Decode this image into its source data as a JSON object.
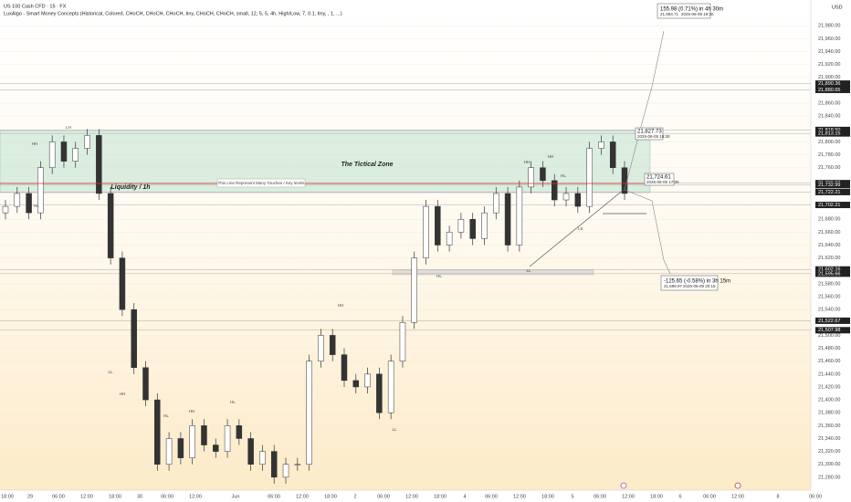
{
  "header": {
    "symbol": "US 100 Cash CFD · 15 · FX",
    "indicator": "LuxAlgo - Smart Money Concepts (Historical, Colored, CHoCH, CHoCH, CHoCH, tiny, CHoCH, CHoCH, small, 12, 5, 5, 4h, High/Low, 7, 0.1, tiny, , 1, ...)"
  },
  "currency": "USD",
  "annotations": {
    "zone": "The Tictical Zone",
    "liquidity": "Liquidity / 1h",
    "key_line": "This Line Represent Many Touches  / Key levels",
    "trend": "LS"
  },
  "measures": [
    {
      "change": "155.98 (0.71%) in 4h 30m",
      "price": "21,983.71",
      "date": "2025-06-09  19:30"
    },
    {
      "price": "21,827.73",
      "date": "2025-06-05 15:30"
    },
    {
      "price": "21,724.61",
      "date": "2025-06-05 17:00"
    },
    {
      "change": "-125.65 (-0.58%) in 3h 15m",
      "price": "21,598.97",
      "date": "2025-06-09  20:15"
    }
  ],
  "smc_labels": [
    "HH",
    "HL",
    "LH",
    "LL",
    "HH",
    "HL",
    "HH",
    "HL",
    "LL",
    "HH",
    "HL",
    "LL",
    "HH",
    "HH",
    "HL"
  ],
  "levels": [
    {
      "value": 21890.36,
      "label": "21,890.36"
    },
    {
      "value": 21880.65,
      "label": "21,880.65"
    },
    {
      "value": 21818.5,
      "label": "21,818.50"
    },
    {
      "value": 21813.15,
      "label": "21,813.15"
    },
    {
      "value": 21736.03,
      "label": "21,736.03"
    },
    {
      "value": 21732.99,
      "label": "21,732.99"
    },
    {
      "value": 21722.21,
      "label": "21,722.21"
    },
    {
      "value": 21702.21,
      "label": "21,702.21"
    },
    {
      "value": 21602.16,
      "label": "21,602.16"
    },
    {
      "value": 21595.66,
      "label": "21,595.66"
    },
    {
      "value": 21522.67,
      "label": "21,522.67"
    },
    {
      "value": 21507.98,
      "label": "21,507.98"
    }
  ],
  "chart_data": {
    "type": "candlestick",
    "up_color": "#ffffff",
    "down_color": "#333333",
    "wick_color": "#333333",
    "time_labels": [
      "18:00",
      "29",
      "06:00",
      "12:00",
      "18:00",
      "30",
      "06:00",
      "12:00",
      "Jun",
      "06:00",
      "12:00",
      "18:00",
      "2",
      "06:00",
      "12:00",
      "18:00",
      "4",
      "06:00",
      "12:00",
      "18:00",
      "5",
      "06:00",
      "12:00",
      "18:00",
      "6",
      "06:00",
      "12:00",
      "8",
      "06:00"
    ],
    "open": [
      21690,
      21700,
      21720,
      21690,
      21760,
      21800,
      21770,
      21790,
      21810,
      21720,
      21620,
      21540,
      21450,
      21400,
      21300,
      21340,
      21310,
      21360,
      21330,
      21320,
      21360,
      21340,
      21300,
      21320,
      21280,
      21300,
      21300,
      21460,
      21500,
      21470,
      21430,
      21420,
      21440,
      21380,
      21460,
      21520,
      21620,
      21700,
      21640,
      21660,
      21680,
      21650,
      21690,
      21720,
      21640,
      21730,
      21760,
      21740,
      21710,
      21720,
      21700,
      21790,
      21800,
      21760
    ],
    "high": [
      21710,
      21730,
      21730,
      21770,
      21810,
      21810,
      21800,
      21820,
      21820,
      21730,
      21630,
      21550,
      21460,
      21410,
      21350,
      21350,
      21370,
      21370,
      21340,
      21370,
      21370,
      21350,
      21330,
      21330,
      21310,
      21310,
      21470,
      21510,
      21510,
      21480,
      21440,
      21450,
      21450,
      21470,
      21530,
      21630,
      21710,
      21710,
      21670,
      21690,
      21690,
      21700,
      21730,
      21730,
      21740,
      21770,
      21770,
      21750,
      21730,
      21730,
      21800,
      21810,
      21810,
      21770
    ],
    "low": [
      21680,
      21690,
      21680,
      21680,
      21750,
      21760,
      21760,
      21780,
      21710,
      21610,
      21530,
      21440,
      21390,
      21290,
      21290,
      21300,
      21300,
      21320,
      21310,
      21310,
      21330,
      21290,
      21290,
      21270,
      21270,
      21290,
      21290,
      21450,
      21460,
      21420,
      21410,
      21410,
      21370,
      21370,
      21450,
      21510,
      21610,
      21630,
      21630,
      21650,
      21640,
      21640,
      21680,
      21630,
      21630,
      21720,
      21730,
      21700,
      21700,
      21690,
      21690,
      21780,
      21750,
      21710
    ],
    "close": [
      21700,
      21720,
      21690,
      21760,
      21800,
      21770,
      21790,
      21810,
      21720,
      21620,
      21540,
      21450,
      21400,
      21300,
      21340,
      21310,
      21360,
      21330,
      21320,
      21360,
      21340,
      21300,
      21320,
      21280,
      21300,
      21300,
      21460,
      21500,
      21470,
      21430,
      21420,
      21440,
      21380,
      21460,
      21520,
      21620,
      21700,
      21640,
      21660,
      21680,
      21650,
      21690,
      21720,
      21640,
      21730,
      21760,
      21740,
      21710,
      21720,
      21700,
      21790,
      21800,
      21760,
      21720
    ],
    "ylim": [
      21260,
      22020
    ],
    "yticks": [
      {
        "value": 21280,
        "label": "21,280.00"
      },
      {
        "value": 21300,
        "label": "21,300.00"
      },
      {
        "value": 21320,
        "label": "21,320.00"
      },
      {
        "value": 21340,
        "label": "21,340.00"
      },
      {
        "value": 21360,
        "label": "21,360.00"
      },
      {
        "value": 21380,
        "label": "21,380.00"
      },
      {
        "value": 21400,
        "label": "21,400.00"
      },
      {
        "value": 21420,
        "label": "21,420.00"
      },
      {
        "value": 21440,
        "label": "21,440.00"
      },
      {
        "value": 21460,
        "label": "21,460.00"
      },
      {
        "value": 21480,
        "label": "21,480.00"
      },
      {
        "value": 21500,
        "label": "21,500.00"
      },
      {
        "value": 21540,
        "label": "21,540.00"
      },
      {
        "value": 21560,
        "label": "21,560.00"
      },
      {
        "value": 21580,
        "label": "21,580.00"
      },
      {
        "value": 21620,
        "label": "21,620.00"
      },
      {
        "value": 21640,
        "label": "21,640.00"
      },
      {
        "value": 21660,
        "label": "21,660.00"
      },
      {
        "value": 21680,
        "label": "21,680.00"
      },
      {
        "value": 21760,
        "label": "21,760.00"
      },
      {
        "value": 21780,
        "label": "21,780.00"
      },
      {
        "value": 21800,
        "label": "21,800.00"
      },
      {
        "value": 21840,
        "label": "21,840.00"
      },
      {
        "value": 21860,
        "label": "21,860.00"
      },
      {
        "value": 21900,
        "label": "21,900.00"
      },
      {
        "value": 21920,
        "label": "21,920.00"
      },
      {
        "value": 21940,
        "label": "21,940.00"
      },
      {
        "value": 21960,
        "label": "21,960.00"
      },
      {
        "value": 21980,
        "label": "21,980.00"
      }
    ],
    "grid": true
  }
}
